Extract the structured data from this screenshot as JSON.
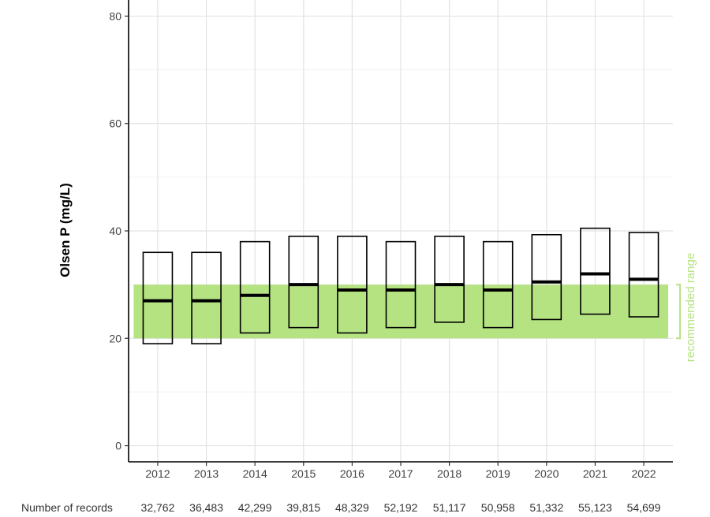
{
  "chart_data": {
    "type": "box",
    "ylabel": "Olsen P (mg/L)",
    "ylim": [
      -3,
      83
    ],
    "yticks": [
      0,
      20,
      40,
      60,
      80
    ],
    "grid": true,
    "categories": [
      "2012",
      "2013",
      "2014",
      "2015",
      "2016",
      "2017",
      "2018",
      "2019",
      "2020",
      "2021",
      "2022"
    ],
    "boxes": [
      {
        "q1": 19,
        "median": 27,
        "q3": 36
      },
      {
        "q1": 19,
        "median": 27,
        "q3": 36
      },
      {
        "q1": 21,
        "median": 28,
        "q3": 38
      },
      {
        "q1": 22,
        "median": 30,
        "q3": 39
      },
      {
        "q1": 21,
        "median": 29,
        "q3": 39
      },
      {
        "q1": 22,
        "median": 29,
        "q3": 38
      },
      {
        "q1": 23,
        "median": 30,
        "q3": 39
      },
      {
        "q1": 22,
        "median": 29,
        "q3": 38
      },
      {
        "q1": 23.5,
        "median": 30.5,
        "q3": 39.3
      },
      {
        "q1": 24.5,
        "median": 32,
        "q3": 40.5
      },
      {
        "q1": 24,
        "median": 31,
        "q3": 39.7
      }
    ],
    "recommended_range": {
      "min": 20,
      "max": 30,
      "label": "recommended range",
      "color": "#b5e382"
    },
    "records_label": "Number of records",
    "records": [
      "32,762",
      "36,483",
      "42,299",
      "39,815",
      "48,329",
      "52,192",
      "51,117",
      "50,958",
      "51,332",
      "55,123",
      "54,699"
    ]
  }
}
